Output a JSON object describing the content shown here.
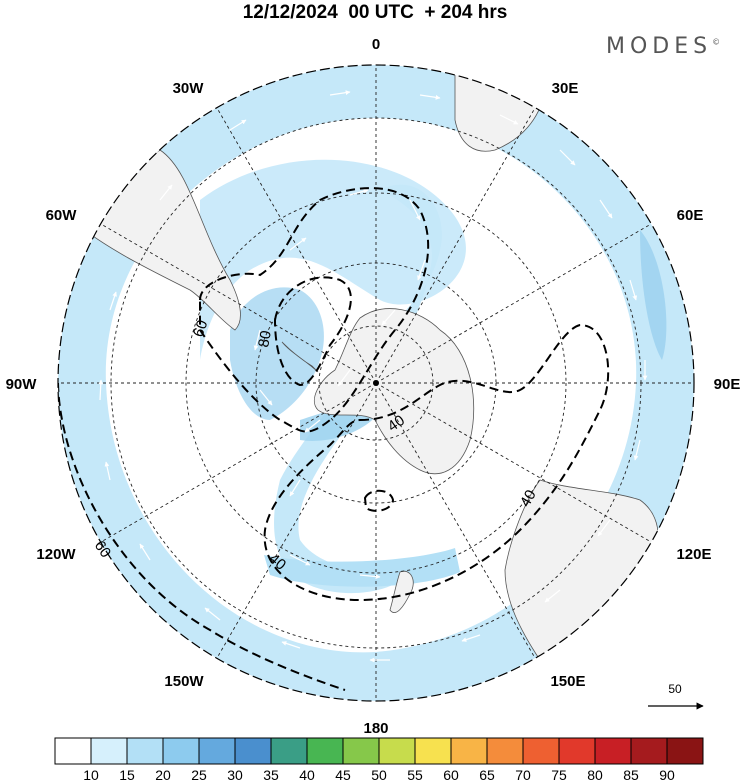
{
  "header": {
    "title": "12/12/2024  00 UTC  + 204 hrs",
    "brand": "MODES",
    "brand_mark": "©"
  },
  "map": {
    "projection": "south polar stereographic",
    "longitude_labels": [
      {
        "id": "0",
        "text": "0"
      },
      {
        "id": "30E",
        "text": "30E"
      },
      {
        "id": "60E",
        "text": "60E"
      },
      {
        "id": "90E",
        "text": "90E"
      },
      {
        "id": "120E",
        "text": "120E"
      },
      {
        "id": "150E",
        "text": "150E"
      },
      {
        "id": "180",
        "text": "180"
      },
      {
        "id": "150W",
        "text": "150W"
      },
      {
        "id": "120W",
        "text": "120W"
      },
      {
        "id": "90W",
        "text": "90W"
      },
      {
        "id": "60W",
        "text": "60W"
      },
      {
        "id": "30W",
        "text": "30W"
      }
    ],
    "contour_labels": [
      "60",
      "80",
      "40",
      "40",
      "40",
      "60"
    ],
    "shading_color": "#c5e8f9",
    "shading_color_strong": "#9fd3f0",
    "land_color": "#f2f2f2"
  },
  "reference_vector": {
    "label": "50"
  },
  "colorbar": {
    "labels": [
      "10",
      "15",
      "20",
      "25",
      "30",
      "35",
      "40",
      "45",
      "50",
      "55",
      "60",
      "65",
      "70",
      "75",
      "80",
      "85",
      "90"
    ],
    "colors": [
      "#ffffff",
      "#d6f0fc",
      "#b3e0f6",
      "#8dcbee",
      "#64a9de",
      "#4a8fce",
      "#3a9e86",
      "#48b652",
      "#86c84a",
      "#c7dc4c",
      "#f7e14f",
      "#f8b446",
      "#f48c3b",
      "#ee6031",
      "#e1392b",
      "#c81f25",
      "#a51b1e",
      "#8a1414"
    ]
  }
}
